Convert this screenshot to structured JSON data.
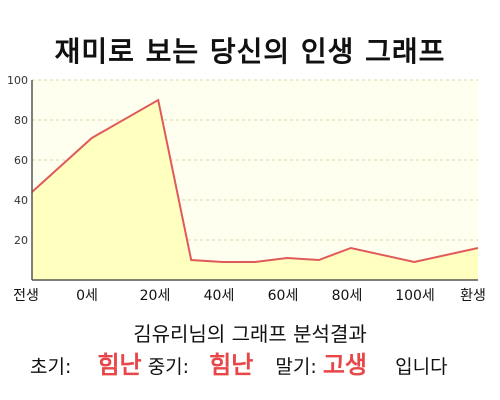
{
  "title": "재미로 보는 당신의 인생 그래프",
  "result_title": "김유리님의 그래프 분석결과",
  "summary": {
    "early_label": "초기:",
    "early_value": "힘난",
    "middle_label": "중기:",
    "middle_value": "힘난",
    "late_label": "말기:",
    "late_value": "고생",
    "suffix": "입니다"
  },
  "colors": {
    "highlight": "#e8474a",
    "line": "#e05a5a",
    "fill": "#ffffc0",
    "plot_bg": "#fffff0",
    "grid": "#d8d4a8"
  },
  "chart_data": {
    "type": "area",
    "title": "",
    "xlabel": "",
    "ylabel": "",
    "ylim": [
      0,
      100
    ],
    "yticks": [
      20,
      40,
      60,
      80,
      100
    ],
    "x_tick_labels": [
      "전생",
      "0세",
      "20세",
      "40세",
      "60세",
      "80세",
      "100세",
      "환생"
    ],
    "grid": true,
    "series": [
      {
        "points": [
          {
            "x": "전생",
            "y": 44
          },
          {
            "x": "0세",
            "y": 71
          },
          {
            "x": "20세",
            "y": 90
          },
          {
            "x": "~30세",
            "y": 10
          },
          {
            "x": "~40세",
            "y": 9
          },
          {
            "x": "~50세",
            "y": 9
          },
          {
            "x": "60세",
            "y": 11
          },
          {
            "x": "~70세",
            "y": 10
          },
          {
            "x": "80세",
            "y": 16
          },
          {
            "x": "100세",
            "y": 9
          },
          {
            "x": "환생",
            "y": 16
          }
        ]
      }
    ]
  }
}
